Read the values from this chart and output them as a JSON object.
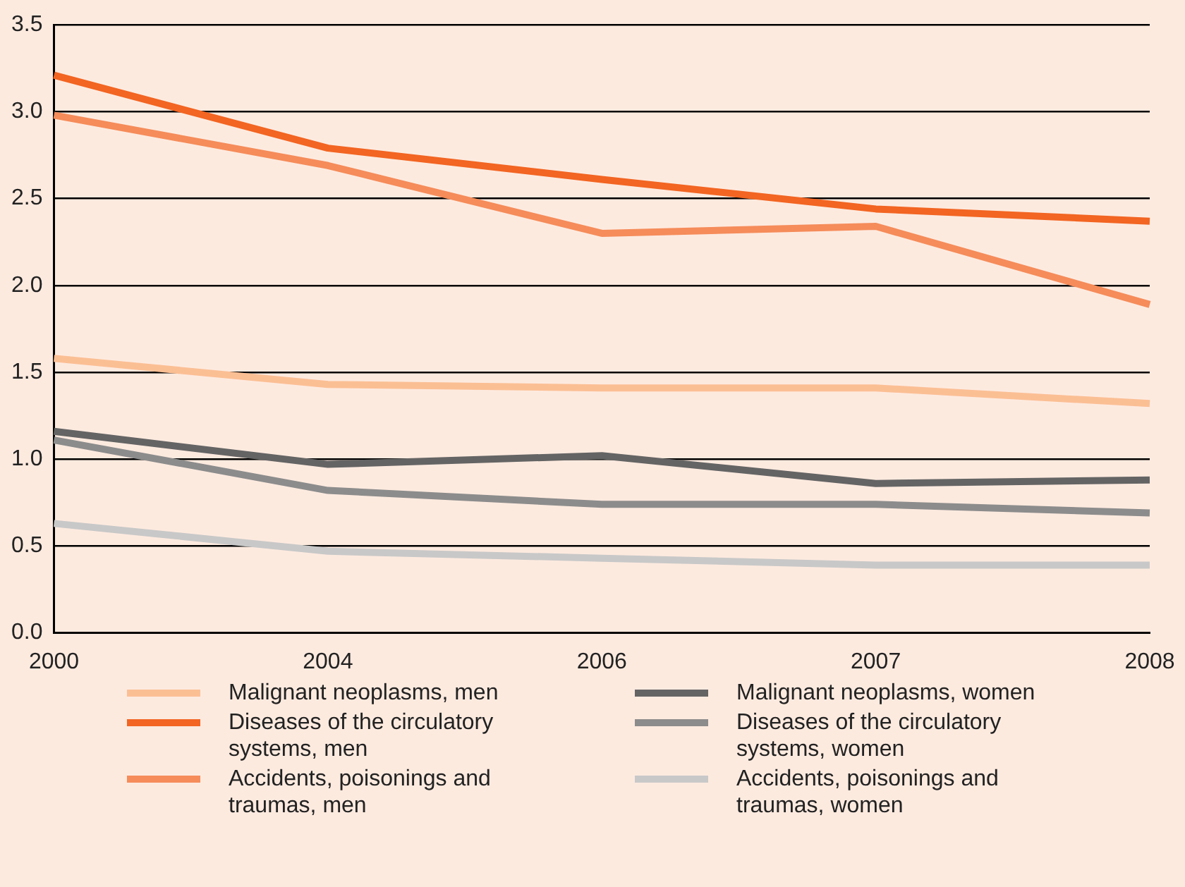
{
  "chart_data": {
    "type": "line",
    "categories": [
      "2000",
      "2004",
      "2006",
      "2007",
      "2008"
    ],
    "series": [
      {
        "name": "Malignant neoplasms, men",
        "color": "#fbbf94",
        "values": [
          1.58,
          1.43,
          1.41,
          1.41,
          1.32
        ]
      },
      {
        "name": "Diseases of the circulatory systems, men",
        "color": "#f26522",
        "values": [
          3.21,
          2.79,
          2.61,
          2.44,
          2.37
        ]
      },
      {
        "name": "Accidents, poisonings and traumas, men",
        "color": "#f58c5a",
        "values": [
          2.98,
          2.69,
          2.3,
          2.34,
          1.89
        ]
      },
      {
        "name": "Malignant neoplasms, women",
        "color": "#646464",
        "values": [
          1.16,
          0.97,
          1.02,
          0.86,
          0.88
        ]
      },
      {
        "name": "Diseases of the circulatory systems, women",
        "color": "#8c8c8c",
        "values": [
          1.11,
          0.82,
          0.74,
          0.74,
          0.69
        ]
      },
      {
        "name": "Accidents, poisonings and traumas, women",
        "color": "#c8c8c8",
        "values": [
          0.63,
          0.47,
          0.43,
          0.39,
          0.39
        ]
      }
    ],
    "ylim": [
      0,
      3.5
    ],
    "yticks": [
      {
        "value": 0,
        "label": "0.0"
      },
      {
        "value": 0.5,
        "label": "0.5"
      },
      {
        "value": 1,
        "label": "1.0"
      },
      {
        "value": 1.5,
        "label": "1.5"
      },
      {
        "value": 2,
        "label": "2.0"
      },
      {
        "value": 2.5,
        "label": "2.5"
      },
      {
        "value": 3,
        "label": "3.0"
      },
      {
        "value": 3.5,
        "label": "3.5"
      }
    ],
    "grid": "y",
    "legend": "bottom",
    "marker": "none",
    "line_style": "solid"
  }
}
